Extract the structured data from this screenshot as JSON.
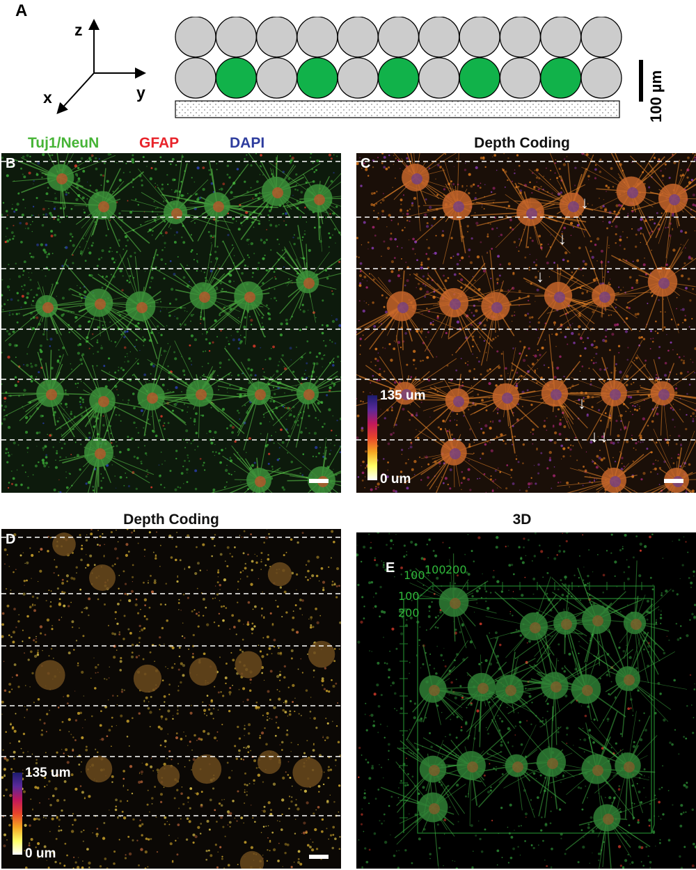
{
  "figure": {
    "panel_a": {
      "letter": "A",
      "axes": {
        "z": "z",
        "x": "x",
        "y": "y"
      },
      "scale_label": "100 µm",
      "rows": [
        {
          "circles": [
            "gray",
            "gray",
            "gray",
            "gray",
            "gray",
            "gray",
            "gray",
            "gray",
            "gray",
            "gray",
            "gray"
          ]
        },
        {
          "circles": [
            "gray",
            "green",
            "gray",
            "green",
            "gray",
            "green",
            "gray",
            "green",
            "gray",
            "green",
            "gray"
          ]
        }
      ],
      "colors": {
        "gray": "#cccccc",
        "green": "#11b24a"
      }
    },
    "panel_b": {
      "letter": "B",
      "channels": [
        {
          "label": "Tuj1/NeuN",
          "color": "#46b436"
        },
        {
          "label": "GFAP",
          "color": "#e8232a"
        },
        {
          "label": "DAPI",
          "color": "#2e3d9e"
        }
      ]
    },
    "panel_c": {
      "letter": "C",
      "title": "Depth Coding",
      "colorbar": {
        "max": "135 um",
        "min": "0 um"
      }
    },
    "panel_d": {
      "letter": "D",
      "title": "Depth Coding",
      "colorbar": {
        "max": "135 um",
        "min": "0 um"
      }
    },
    "panel_e": {
      "letter": "E",
      "title": "3D",
      "axis_ticks_top": [
        "100",
        "100",
        "200"
      ],
      "axis_ticks_left": [
        "100",
        "200"
      ]
    }
  }
}
